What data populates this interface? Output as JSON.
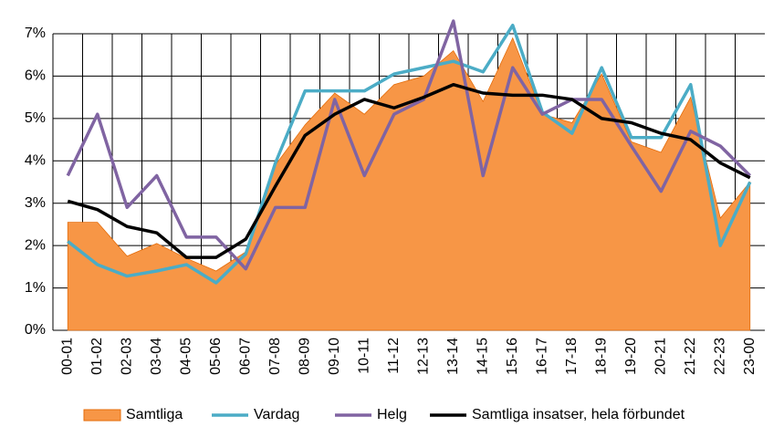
{
  "chart_data": {
    "type": "area-line",
    "categories": [
      "00-01",
      "01-02",
      "02-03",
      "03-04",
      "04-05",
      "05-06",
      "06-07",
      "07-08",
      "08-09",
      "09-10",
      "10-11",
      "11-12",
      "12-13",
      "13-14",
      "14-15",
      "15-16",
      "16-17",
      "17-18",
      "18-19",
      "19-20",
      "20-21",
      "21-22",
      "22-23",
      "23-00"
    ],
    "series": [
      {
        "name": "Samtliga",
        "kind": "area",
        "color": "#f79646",
        "values": [
          2.55,
          2.55,
          1.75,
          2.05,
          1.7,
          1.4,
          1.85,
          3.9,
          4.85,
          5.6,
          5.1,
          5.8,
          6.0,
          6.6,
          5.4,
          6.9,
          5.1,
          4.9,
          6.05,
          4.45,
          4.2,
          5.5,
          2.65,
          3.5
        ]
      },
      {
        "name": "Vardag",
        "kind": "line",
        "color": "#4bacc6",
        "values": [
          2.1,
          1.55,
          1.28,
          1.4,
          1.55,
          1.12,
          1.8,
          3.95,
          5.65,
          5.65,
          5.65,
          6.05,
          6.2,
          6.35,
          6.1,
          7.2,
          5.15,
          4.65,
          6.2,
          4.55,
          4.55,
          5.8,
          2.0,
          3.5
        ]
      },
      {
        "name": "Helg",
        "kind": "line",
        "color": "#8064a2",
        "values": [
          3.65,
          5.1,
          2.9,
          3.65,
          2.2,
          2.2,
          1.45,
          2.9,
          2.9,
          5.45,
          3.65,
          5.1,
          5.45,
          7.3,
          3.65,
          6.2,
          5.1,
          5.45,
          5.45,
          4.35,
          3.28,
          4.7,
          4.35,
          3.65
        ]
      },
      {
        "name": "Samtliga insatser, hela förbundet",
        "kind": "line",
        "color": "#000000",
        "values": [
          3.05,
          2.85,
          2.45,
          2.3,
          1.72,
          1.72,
          2.15,
          3.4,
          4.6,
          5.1,
          5.45,
          5.25,
          5.5,
          5.8,
          5.6,
          5.55,
          5.55,
          5.45,
          5.0,
          4.9,
          4.65,
          4.5,
          3.95,
          3.6
        ]
      }
    ],
    "ylim": [
      0,
      7
    ],
    "yticks": [
      {
        "value": 0,
        "label": "0%"
      },
      {
        "value": 1,
        "label": "1%"
      },
      {
        "value": 2,
        "label": "2%"
      },
      {
        "value": 3,
        "label": "3%"
      },
      {
        "value": 4,
        "label": "4%"
      },
      {
        "value": 5,
        "label": "5%"
      },
      {
        "value": 6,
        "label": "6%"
      },
      {
        "value": 7,
        "label": "7%"
      }
    ],
    "grid": true
  }
}
